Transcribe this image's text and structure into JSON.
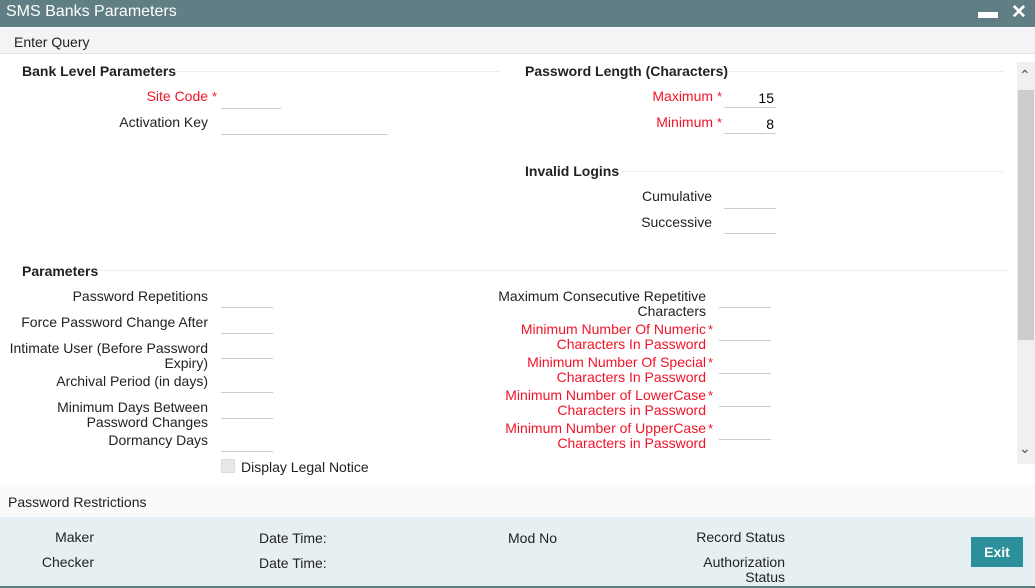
{
  "window": {
    "title": "SMS Banks Parameters",
    "minimize": "▬",
    "close": "✕"
  },
  "toolbar": {
    "enter_query": "Enter Query"
  },
  "bank": {
    "heading": "Bank Level Parameters",
    "site_code": "Site Code",
    "site_code_value": "",
    "activation_key": "Activation Key",
    "activation_key_value": ""
  },
  "pwlen": {
    "heading": "Password Length (Characters)",
    "maximum": "Maximum",
    "maximum_value": "15",
    "minimum": "Minimum",
    "minimum_value": "8"
  },
  "invalid": {
    "heading": "Invalid Logins",
    "cumulative": "Cumulative",
    "successive": "Successive"
  },
  "params": {
    "heading": "Parameters",
    "left": [
      {
        "l1": "Password Repetitions",
        "l2": ""
      },
      {
        "l1": "Force Password Change After",
        "l2": ""
      },
      {
        "l1": "Intimate User (Before Password",
        "l2": "Expiry)"
      },
      {
        "l1": "Archival Period (in days)",
        "l2": ""
      },
      {
        "l1": "Minimum Days Between",
        "l2": "Password Changes"
      },
      {
        "l1": "Dormancy Days",
        "l2": ""
      }
    ],
    "right": [
      {
        "l1": "Maximum Consecutive Repetitive",
        "l2": "Characters",
        "required": false
      },
      {
        "l1": "Minimum Number Of Numeric",
        "l2": "Characters In Password",
        "required": true
      },
      {
        "l1": "Minimum Number Of Special",
        "l2": "Characters In Password",
        "required": true
      },
      {
        "l1": "Minimum Number of LowerCase",
        "l2": "Characters in Password",
        "required": true
      },
      {
        "l1": "Minimum Number of UpperCase",
        "l2": "Characters in Password",
        "required": true
      }
    ],
    "legal_notice": "Display Legal Notice",
    "legal_notice_checked": false
  },
  "required_mark": "*",
  "tabs": {
    "restrictions": "Password Restrictions"
  },
  "footer": {
    "maker": "Maker",
    "checker": "Checker",
    "date_time1": "Date Time:",
    "date_time2": "Date Time:",
    "mod_no": "Mod No",
    "record_status": "Record Status",
    "auth_l1": "Authorization",
    "auth_l2": "Status",
    "exit": "Exit"
  },
  "colors": {
    "titlebar": "#5f7f84",
    "required": "#f0142a",
    "exit_button": "#2b8f9c",
    "footer": "#e6f0f2"
  }
}
